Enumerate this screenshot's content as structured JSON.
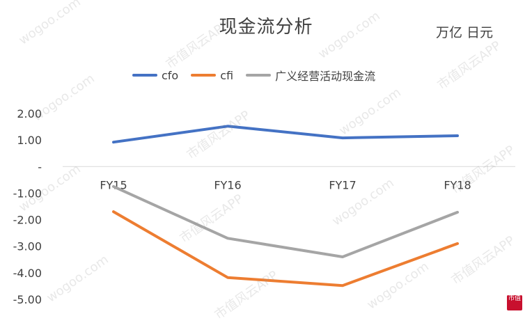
{
  "header": {
    "title": "现金流分析",
    "unit": "万亿 日元"
  },
  "watermark": {
    "text": "wogoo.com",
    "text_cn": "市值风云APP"
  },
  "corner_badge": "市值",
  "chart_data": {
    "type": "line",
    "categories": [
      "FY15",
      "FY16",
      "FY17",
      "FY18"
    ],
    "series": [
      {
        "name": "cfo",
        "color": "#4472c4",
        "values": [
          0.92,
          1.52,
          1.08,
          1.16
        ]
      },
      {
        "name": "cfi",
        "color": "#ed7d31",
        "values": [
          -1.7,
          -4.18,
          -4.48,
          -2.9
        ]
      },
      {
        "name": "广义经营活动现金流",
        "color": "#a5a5a5",
        "values": [
          -0.75,
          -2.7,
          -3.4,
          -1.72
        ]
      }
    ],
    "y_ticks": [
      "2.00",
      "1.00",
      "-",
      "-1.00",
      "-2.00",
      "-3.00",
      "-4.00",
      "-5.00"
    ],
    "ylim": [
      -5,
      2
    ],
    "grid": false,
    "legend_position": "top"
  }
}
